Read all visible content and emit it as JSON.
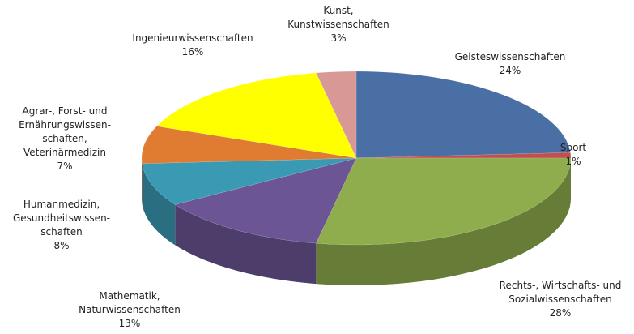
{
  "chart_data": {
    "type": "pie3d",
    "categories": [
      "Geisteswissenschaften",
      "Sport",
      "Rechts-, Wirtschafts- und\nSozialwissenschaften",
      "Mathematik,\nNaturwissenschaften",
      "Humanmedizin,\nGesundheitswissen-\nschaften",
      "Agrar-, Forst- und\nErnährungswissen-\nschaften,\nVeterinärmedizin",
      "Ingenieurwissenschaften",
      "Kunst,\nKunstwissenschaften"
    ],
    "values": [
      24,
      1,
      28,
      13,
      8,
      7,
      16,
      3
    ],
    "value_labels": [
      "24%",
      "1%",
      "28%",
      "13%",
      "8%",
      "7%",
      "16%",
      "3%"
    ],
    "colors": [
      "#4a6fa5",
      "#c0504d",
      "#8fad4c",
      "#6b5594",
      "#3a9ab3",
      "#e07b32",
      "#ffff00",
      "#d89896"
    ]
  }
}
